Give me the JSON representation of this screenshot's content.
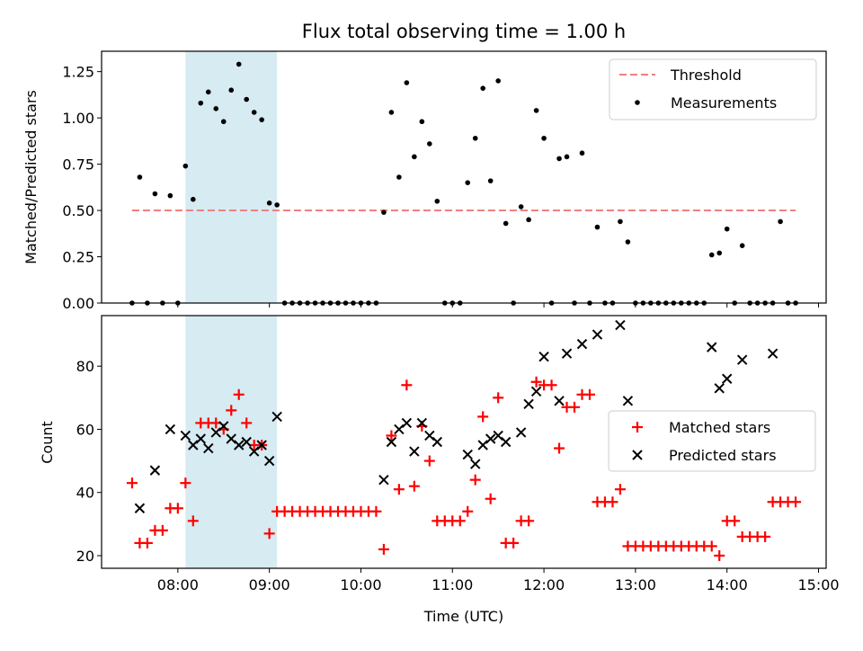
{
  "chart_data": [
    {
      "type": "scatter",
      "title": "Flux total observing time = 1.00 h",
      "xlabel": "",
      "ylabel": "Matched/Predicted stars",
      "xlim": [
        "07:10",
        "15:05"
      ],
      "ylim": [
        0,
        1.36
      ],
      "yticks": [
        0.0,
        0.25,
        0.5,
        0.75,
        1.0,
        1.25
      ],
      "ytick_labels": [
        "0.00",
        "0.25",
        "0.50",
        "0.75",
        "1.00",
        "1.25"
      ],
      "xticks": [
        "08:00",
        "09:00",
        "10:00",
        "11:00",
        "12:00",
        "13:00",
        "14:00",
        "15:00"
      ],
      "highlight_span": {
        "start": "08:05",
        "end": "09:05",
        "color": "#add8e6"
      },
      "legend_location": "upper right",
      "threshold": {
        "name": "Threshold",
        "value": 0.5,
        "x_start": "07:30",
        "x_end": "14:45",
        "color": "#f08080"
      },
      "series": [
        {
          "name": "Measurements",
          "marker": "dot",
          "color": "#000000",
          "points": [
            [
              "07:30",
              0.0
            ],
            [
              "07:35",
              0.68
            ],
            [
              "07:40",
              0.0
            ],
            [
              "07:45",
              0.59
            ],
            [
              "07:50",
              0.0
            ],
            [
              "07:55",
              0.58
            ],
            [
              "08:00",
              0.0
            ],
            [
              "08:05",
              0.74
            ],
            [
              "08:10",
              0.56
            ],
            [
              "08:15",
              1.08
            ],
            [
              "08:20",
              1.14
            ],
            [
              "08:25",
              1.05
            ],
            [
              "08:30",
              0.98
            ],
            [
              "08:35",
              1.15
            ],
            [
              "08:40",
              1.29
            ],
            [
              "08:45",
              1.1
            ],
            [
              "08:50",
              1.03
            ],
            [
              "08:55",
              0.99
            ],
            [
              "09:00",
              0.54
            ],
            [
              "09:05",
              0.53
            ],
            [
              "09:10",
              0.0
            ],
            [
              "09:15",
              0.0
            ],
            [
              "09:20",
              0.0
            ],
            [
              "09:25",
              0.0
            ],
            [
              "09:30",
              0.0
            ],
            [
              "09:35",
              0.0
            ],
            [
              "09:40",
              0.0
            ],
            [
              "09:45",
              0.0
            ],
            [
              "09:50",
              0.0
            ],
            [
              "09:55",
              0.0
            ],
            [
              "10:00",
              0.0
            ],
            [
              "10:05",
              0.0
            ],
            [
              "10:10",
              0.0
            ],
            [
              "10:15",
              0.49
            ],
            [
              "10:20",
              1.03
            ],
            [
              "10:25",
              0.68
            ],
            [
              "10:30",
              1.19
            ],
            [
              "10:35",
              0.79
            ],
            [
              "10:40",
              0.98
            ],
            [
              "10:45",
              0.86
            ],
            [
              "10:50",
              0.55
            ],
            [
              "10:55",
              0.0
            ],
            [
              "11:00",
              0.0
            ],
            [
              "11:05",
              0.0
            ],
            [
              "11:10",
              0.65
            ],
            [
              "11:15",
              0.89
            ],
            [
              "11:20",
              1.16
            ],
            [
              "11:25",
              0.66
            ],
            [
              "11:30",
              1.2
            ],
            [
              "11:35",
              0.43
            ],
            [
              "11:40",
              0.0
            ],
            [
              "11:45",
              0.52
            ],
            [
              "11:50",
              0.45
            ],
            [
              "11:55",
              1.04
            ],
            [
              "12:00",
              0.89
            ],
            [
              "12:05",
              0.0
            ],
            [
              "12:10",
              0.78
            ],
            [
              "12:15",
              0.79
            ],
            [
              "12:20",
              0.0
            ],
            [
              "12:25",
              0.81
            ],
            [
              "12:30",
              0.0
            ],
            [
              "12:35",
              0.41
            ],
            [
              "12:40",
              0.0
            ],
            [
              "12:45",
              0.0
            ],
            [
              "12:50",
              0.44
            ],
            [
              "12:55",
              0.33
            ],
            [
              "13:00",
              0.0
            ],
            [
              "13:05",
              0.0
            ],
            [
              "13:10",
              0.0
            ],
            [
              "13:15",
              0.0
            ],
            [
              "13:20",
              0.0
            ],
            [
              "13:25",
              0.0
            ],
            [
              "13:30",
              0.0
            ],
            [
              "13:35",
              0.0
            ],
            [
              "13:40",
              0.0
            ],
            [
              "13:45",
              0.0
            ],
            [
              "13:50",
              0.26
            ],
            [
              "13:55",
              0.27
            ],
            [
              "14:00",
              0.4
            ],
            [
              "14:05",
              0.0
            ],
            [
              "14:10",
              0.31
            ],
            [
              "14:15",
              0.0
            ],
            [
              "14:20",
              0.0
            ],
            [
              "14:25",
              0.0
            ],
            [
              "14:30",
              0.0
            ],
            [
              "14:35",
              0.44
            ],
            [
              "14:40",
              0.0
            ],
            [
              "14:45",
              0.0
            ]
          ]
        }
      ]
    },
    {
      "type": "scatter",
      "title": "",
      "xlabel": "Time (UTC)",
      "ylabel": "Count",
      "xlim": [
        "07:10",
        "15:05"
      ],
      "ylim": [
        16,
        96
      ],
      "yticks": [
        20,
        40,
        60,
        80
      ],
      "ytick_labels": [
        "20",
        "40",
        "60",
        "80"
      ],
      "xticks": [
        "08:00",
        "09:00",
        "10:00",
        "11:00",
        "12:00",
        "13:00",
        "14:00",
        "15:00"
      ],
      "highlight_span": {
        "start": "08:05",
        "end": "09:05",
        "color": "#add8e6"
      },
      "legend_location": "center right",
      "series": [
        {
          "name": "Matched stars",
          "marker": "plus",
          "color": "#ff0000",
          "points": [
            [
              "07:30",
              43
            ],
            [
              "07:35",
              24
            ],
            [
              "07:40",
              24
            ],
            [
              "07:45",
              28
            ],
            [
              "07:50",
              28
            ],
            [
              "07:55",
              35
            ],
            [
              "08:00",
              35
            ],
            [
              "08:05",
              43
            ],
            [
              "08:10",
              31
            ],
            [
              "08:15",
              62
            ],
            [
              "08:20",
              62
            ],
            [
              "08:25",
              62
            ],
            [
              "08:30",
              60
            ],
            [
              "08:35",
              66
            ],
            [
              "08:40",
              71
            ],
            [
              "08:45",
              62
            ],
            [
              "08:50",
              55
            ],
            [
              "08:55",
              55
            ],
            [
              "09:00",
              27
            ],
            [
              "09:05",
              34
            ],
            [
              "09:10",
              34
            ],
            [
              "09:15",
              34
            ],
            [
              "09:20",
              34
            ],
            [
              "09:25",
              34
            ],
            [
              "09:30",
              34
            ],
            [
              "09:35",
              34
            ],
            [
              "09:40",
              34
            ],
            [
              "09:45",
              34
            ],
            [
              "09:50",
              34
            ],
            [
              "09:55",
              34
            ],
            [
              "10:00",
              34
            ],
            [
              "10:05",
              34
            ],
            [
              "10:10",
              34
            ],
            [
              "10:15",
              22
            ],
            [
              "10:20",
              58
            ],
            [
              "10:25",
              41
            ],
            [
              "10:30",
              74
            ],
            [
              "10:35",
              42
            ],
            [
              "10:40",
              61
            ],
            [
              "10:45",
              50
            ],
            [
              "10:50",
              31
            ],
            [
              "10:55",
              31
            ],
            [
              "11:00",
              31
            ],
            [
              "11:05",
              31
            ],
            [
              "11:10",
              34
            ],
            [
              "11:15",
              44
            ],
            [
              "11:20",
              64
            ],
            [
              "11:25",
              38
            ],
            [
              "11:30",
              70
            ],
            [
              "11:35",
              24
            ],
            [
              "11:40",
              24
            ],
            [
              "11:45",
              31
            ],
            [
              "11:50",
              31
            ],
            [
              "11:55",
              75
            ],
            [
              "12:00",
              74
            ],
            [
              "12:05",
              74
            ],
            [
              "12:10",
              54
            ],
            [
              "12:15",
              67
            ],
            [
              "12:20",
              67
            ],
            [
              "12:25",
              71
            ],
            [
              "12:30",
              71
            ],
            [
              "12:35",
              37
            ],
            [
              "12:40",
              37
            ],
            [
              "12:45",
              37
            ],
            [
              "12:50",
              41
            ],
            [
              "12:55",
              23
            ],
            [
              "13:00",
              23
            ],
            [
              "13:05",
              23
            ],
            [
              "13:10",
              23
            ],
            [
              "13:15",
              23
            ],
            [
              "13:20",
              23
            ],
            [
              "13:25",
              23
            ],
            [
              "13:30",
              23
            ],
            [
              "13:35",
              23
            ],
            [
              "13:40",
              23
            ],
            [
              "13:45",
              23
            ],
            [
              "13:50",
              23
            ],
            [
              "13:55",
              20
            ],
            [
              "14:00",
              31
            ],
            [
              "14:05",
              31
            ],
            [
              "14:10",
              26
            ],
            [
              "14:15",
              26
            ],
            [
              "14:20",
              26
            ],
            [
              "14:25",
              26
            ],
            [
              "14:30",
              37
            ],
            [
              "14:35",
              37
            ],
            [
              "14:40",
              37
            ],
            [
              "14:45",
              37
            ]
          ]
        },
        {
          "name": "Predicted stars",
          "marker": "x",
          "color": "#000000",
          "points": [
            [
              "07:35",
              35
            ],
            [
              "07:45",
              47
            ],
            [
              "07:55",
              60
            ],
            [
              "08:05",
              58
            ],
            [
              "08:10",
              55
            ],
            [
              "08:15",
              57
            ],
            [
              "08:20",
              54
            ],
            [
              "08:25",
              59
            ],
            [
              "08:30",
              61
            ],
            [
              "08:35",
              57
            ],
            [
              "08:40",
              55
            ],
            [
              "08:45",
              56
            ],
            [
              "08:50",
              53
            ],
            [
              "08:55",
              55
            ],
            [
              "09:00",
              50
            ],
            [
              "09:05",
              64
            ],
            [
              "10:15",
              44
            ],
            [
              "10:20",
              56
            ],
            [
              "10:25",
              60
            ],
            [
              "10:30",
              62
            ],
            [
              "10:35",
              53
            ],
            [
              "10:40",
              62
            ],
            [
              "10:45",
              58
            ],
            [
              "10:50",
              56
            ],
            [
              "11:10",
              52
            ],
            [
              "11:15",
              49
            ],
            [
              "11:20",
              55
            ],
            [
              "11:25",
              57
            ],
            [
              "11:30",
              58
            ],
            [
              "11:35",
              56
            ],
            [
              "11:45",
              59
            ],
            [
              "11:50",
              68
            ],
            [
              "11:55",
              72
            ],
            [
              "12:00",
              83
            ],
            [
              "12:10",
              69
            ],
            [
              "12:15",
              84
            ],
            [
              "12:25",
              87
            ],
            [
              "12:35",
              90
            ],
            [
              "12:50",
              93
            ],
            [
              "12:55",
              69
            ],
            [
              "13:50",
              86
            ],
            [
              "13:55",
              73
            ],
            [
              "14:00",
              76
            ],
            [
              "14:10",
              82
            ],
            [
              "14:30",
              84
            ]
          ]
        }
      ]
    }
  ]
}
